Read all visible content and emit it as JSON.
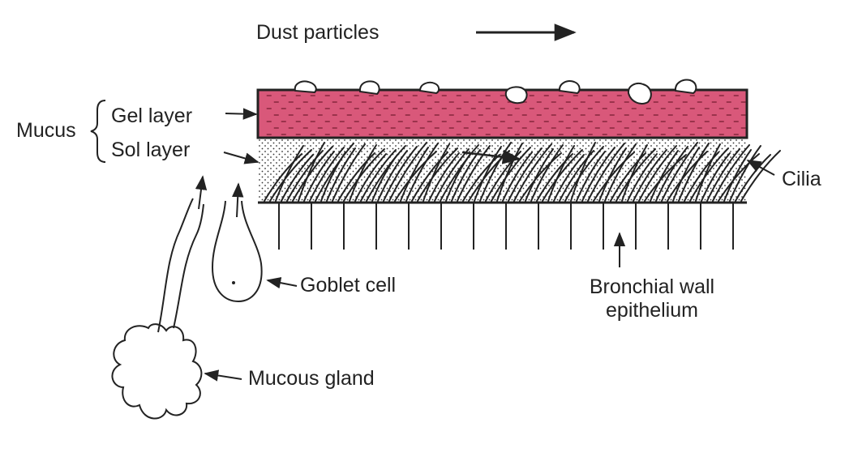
{
  "labels": {
    "dust": "Dust particles",
    "mucus": "Mucus",
    "gel": "Gel layer",
    "sol": "Sol layer",
    "cilia": "Cilia",
    "goblet": "Goblet cell",
    "bronchial_line1": "Bronchial wall",
    "bronchial_line2": "epithelium",
    "gland": "Mucous gland"
  },
  "colors": {
    "gel_layer": "#d9587a",
    "ink": "#222222",
    "background": "#ffffff"
  }
}
